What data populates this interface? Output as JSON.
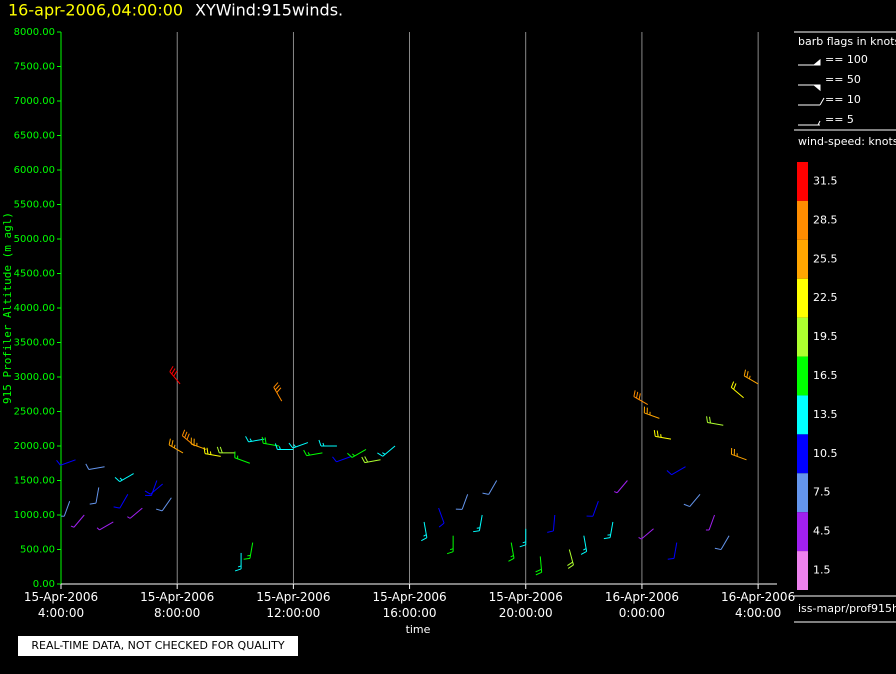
{
  "chart_data": {
    "type": "wind-barb",
    "title": "16-apr-2006,04:00:00",
    "subtitle": "XYWind:915winds.",
    "x_label": "time",
    "y_label": "915 Profiler Altitude (m agl)",
    "footer": "REAL-TIME DATA, NOT CHECKED FOR QUALITY",
    "source": "iss-mapr/prof915h",
    "barb_legend_title": "barb flags in knots",
    "barb_legend": [
      "== 100",
      "== 50",
      "== 10",
      "== 5"
    ],
    "colorbar_title": "wind-speed: knots",
    "colorbar": {
      "levels": [
        1.5,
        4.5,
        7.5,
        10.5,
        13.5,
        16.5,
        19.5,
        22.5,
        25.5,
        28.5,
        31.5
      ],
      "colors": [
        "#ee82ee",
        "#a020f0",
        "#6495ed",
        "#0000ff",
        "#00ffff",
        "#00ff00",
        "#adff2f",
        "#ffff00",
        "#ffa500",
        "#ff8c00",
        "#ff0000"
      ]
    },
    "xlim": [
      0,
      24.65
    ],
    "ylim": [
      0,
      8000
    ],
    "xticks": [
      {
        "value": 0,
        "label": "15-Apr-2006\n4:00:00"
      },
      {
        "value": 4,
        "label": "15-Apr-2006\n8:00:00"
      },
      {
        "value": 8,
        "label": "15-Apr-2006\n12:00:00"
      },
      {
        "value": 12,
        "label": "15-Apr-2006\n16:00:00"
      },
      {
        "value": 16,
        "label": "15-Apr-2006\n20:00:00"
      },
      {
        "value": 20,
        "label": "16-Apr-2006\n0:00:00"
      },
      {
        "value": 24,
        "label": "16-Apr-2006\n4:00:00"
      }
    ],
    "yticks": [
      {
        "value": 0,
        "label": "0.00"
      },
      {
        "value": 500,
        "label": "500.00"
      },
      {
        "value": 1000,
        "label": "1000.00"
      },
      {
        "value": 1500,
        "label": "1500.00"
      },
      {
        "value": 2000,
        "label": "2000.00"
      },
      {
        "value": 2500,
        "label": "2500.00"
      },
      {
        "value": 3000,
        "label": "3000.00"
      },
      {
        "value": 3500,
        "label": "3500.00"
      },
      {
        "value": 4000,
        "label": "4000.00"
      },
      {
        "value": 4500,
        "label": "4500.00"
      },
      {
        "value": 5000,
        "label": "5000.00"
      },
      {
        "value": 5500,
        "label": "5500.00"
      },
      {
        "value": 6000,
        "label": "6000.00"
      },
      {
        "value": 6500,
        "label": "6500.00"
      },
      {
        "value": 7000,
        "label": "7000.00"
      },
      {
        "value": 7500,
        "label": "7500.00"
      },
      {
        "value": 8000,
        "label": "8000.00"
      }
    ],
    "x": [
      0.3,
      0.8,
      1.3,
      1.8,
      2.3,
      2.8,
      3.3,
      3.8,
      0.5,
      1.5,
      2.5,
      3.5,
      4.2,
      4.6,
      5.0,
      5.5,
      6.0,
      6.5,
      7.0,
      7.5,
      8.0,
      8.5,
      9.0,
      9.5,
      10.0,
      10.5,
      11.0,
      11.5,
      6.2,
      6.6,
      12.5,
      13.0,
      13.5,
      14.0,
      14.5,
      15.0,
      15.5,
      16.0,
      16.5,
      17.0,
      17.5,
      18.0,
      18.5,
      19.0,
      19.5,
      20.2,
      20.6,
      21.0,
      21.5,
      22.0,
      22.5,
      23.0,
      23.5,
      24.0,
      20.4,
      21.2,
      22.8,
      23.6,
      4.1,
      7.6
    ],
    "y": [
      1200,
      1000,
      1400,
      900,
      1300,
      1100,
      1500,
      1250,
      1800,
      1700,
      1600,
      1450,
      1900,
      2000,
      1950,
      1850,
      1900,
      1750,
      2100,
      2000,
      1950,
      2050,
      1900,
      2000,
      1850,
      1950,
      1800,
      2000,
      450,
      600,
      900,
      1100,
      700,
      1300,
      1000,
      1500,
      600,
      800,
      400,
      1000,
      500,
      700,
      1200,
      900,
      1500,
      2600,
      2400,
      2100,
      1700,
      1300,
      1000,
      700,
      2700,
      2900,
      800,
      600,
      2300,
      1800,
      2900,
      2650
    ],
    "speed": [
      7,
      5,
      9,
      4,
      11,
      6,
      10,
      8,
      12,
      9,
      13,
      10,
      27,
      30,
      25,
      23,
      20,
      16,
      14,
      18,
      15,
      13,
      17,
      14,
      12,
      16,
      19,
      15,
      15,
      17,
      13,
      11,
      16,
      9,
      14,
      8,
      17,
      15,
      18,
      12,
      19,
      14,
      10,
      13,
      6,
      28,
      26,
      24,
      12,
      8,
      5,
      9,
      22,
      25,
      6,
      11,
      21,
      27,
      31,
      30
    ],
    "direction": [
      200,
      220,
      190,
      240,
      210,
      230,
      200,
      215,
      250,
      260,
      240,
      230,
      300,
      310,
      290,
      280,
      270,
      290,
      260,
      280,
      270,
      250,
      260,
      270,
      250,
      240,
      260,
      230,
      180,
      190,
      170,
      160,
      180,
      200,
      190,
      210,
      170,
      180,
      175,
      185,
      165,
      170,
      200,
      190,
      220,
      300,
      290,
      280,
      240,
      220,
      200,
      210,
      310,
      300,
      230,
      190,
      280,
      290,
      320,
      330
    ]
  }
}
